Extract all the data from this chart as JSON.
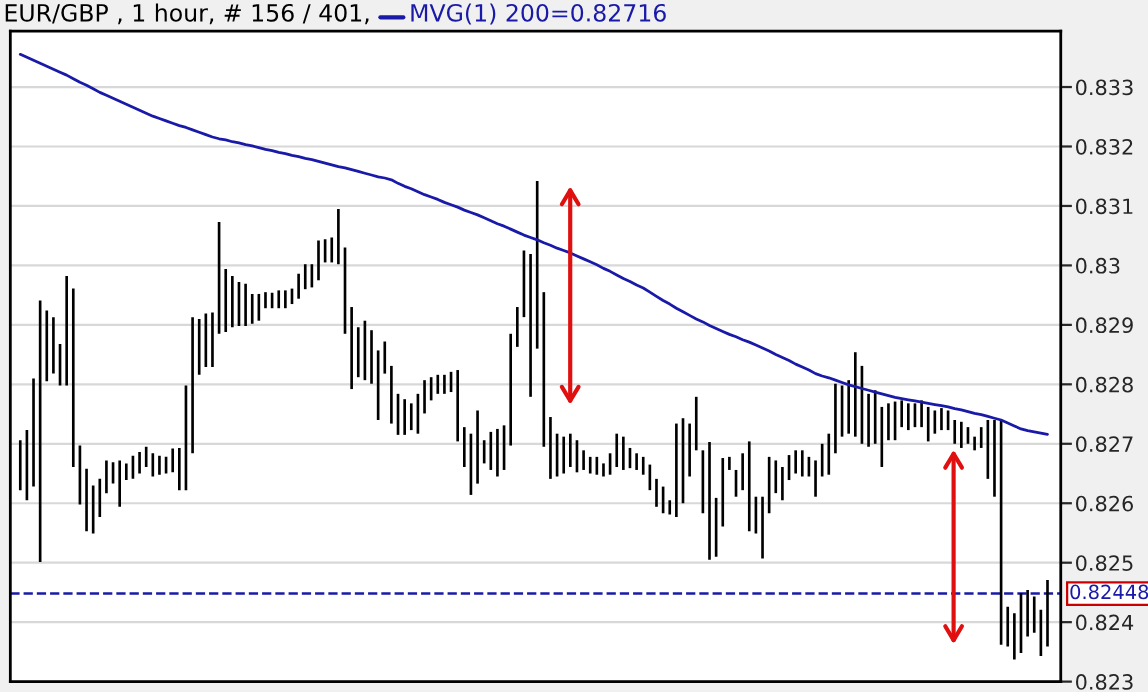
{
  "chart_data": {
    "type": "bar",
    "title": "EUR/GBP , 1 hour, # 156 / 401, ",
    "categories": [
      null,
      null,
      null,
      null,
      null,
      null,
      null,
      null,
      null,
      null,
      null,
      null,
      null,
      null,
      null,
      null,
      null,
      null,
      null,
      null,
      null,
      null,
      null,
      null,
      null,
      null,
      null,
      null,
      null,
      null,
      null,
      null,
      null,
      null,
      null,
      null,
      null,
      null,
      null,
      null,
      null,
      null,
      null,
      null,
      null,
      null,
      null,
      null,
      null,
      null,
      null,
      null,
      null,
      null,
      null,
      null,
      null,
      null,
      null,
      null,
      null,
      null,
      null,
      null,
      null,
      null,
      null,
      null,
      null,
      null,
      null,
      null,
      null,
      null,
      null,
      null,
      null,
      null,
      null,
      null,
      null,
      null,
      null,
      null,
      null,
      null,
      null,
      null,
      null,
      null,
      null,
      null,
      null,
      null,
      null,
      null,
      null,
      null,
      null,
      null,
      null,
      null,
      null,
      null,
      null,
      null,
      null,
      null,
      null,
      null,
      null,
      null,
      null,
      null,
      null,
      null,
      null,
      null,
      null,
      null,
      null,
      null,
      null,
      null,
      null,
      null,
      null,
      null,
      null,
      null,
      null,
      null,
      null,
      null,
      null,
      null,
      null,
      null,
      null,
      null,
      null,
      null,
      null,
      null,
      null,
      null,
      null,
      null,
      null,
      null,
      null,
      null,
      null,
      null,
      null,
      null
    ],
    "series": [
      {
        "color": "#000000",
        "base": [
          0.82622,
          0.82605,
          0.82628,
          0.82501,
          0.82805,
          0.82818,
          0.82798,
          0.82798,
          0.82661,
          0.82598,
          0.82553,
          0.82549,
          0.82577,
          0.82617,
          0.82633,
          0.82594,
          0.82639,
          0.82641,
          0.8265,
          0.82661,
          0.82645,
          0.82648,
          0.8265,
          0.82652,
          0.82622,
          0.82622,
          0.82684,
          0.82816,
          0.82829,
          0.82829,
          0.82885,
          0.82888,
          0.82896,
          0.82898,
          0.82898,
          0.82902,
          0.82907,
          0.82928,
          0.82928,
          0.82928,
          0.82928,
          0.82935,
          0.82944,
          0.8296,
          0.82963,
          0.82975,
          0.83005,
          0.83005,
          0.83002,
          0.82885,
          0.82792,
          0.82812,
          0.82807,
          0.82801,
          0.8274,
          0.82818,
          0.82734,
          0.82715,
          0.82715,
          0.82723,
          0.82717,
          0.82751,
          0.82773,
          0.82784,
          0.82784,
          0.82787,
          0.82704,
          0.82661,
          0.82614,
          0.82633,
          0.82667,
          0.82656,
          0.82645,
          0.82656,
          0.82697,
          0.82863,
          0.82913,
          0.82779,
          0.8286,
          0.82695,
          0.82641,
          0.82645,
          0.8265,
          0.82661,
          0.82652,
          0.82656,
          0.8265,
          0.82648,
          0.82645,
          0.82648,
          0.82661,
          0.82656,
          0.82659,
          0.82656,
          0.82648,
          0.82622,
          0.82594,
          0.82583,
          0.82581,
          0.82577,
          0.826,
          0.82645,
          0.82689,
          0.82583,
          0.82505,
          0.8251,
          0.82561,
          0.82656,
          0.82611,
          0.82622,
          0.82553,
          0.82549,
          0.82507,
          0.82583,
          0.82617,
          0.82605,
          0.82639,
          0.8265,
          0.82645,
          0.82645,
          0.82611,
          0.82645,
          0.82648,
          0.82684,
          0.82712,
          0.82717,
          0.82712,
          0.827,
          0.82695,
          0.827,
          0.82661,
          0.82706,
          0.82706,
          0.82728,
          0.82723,
          0.82728,
          0.82728,
          0.82704,
          0.82717,
          0.82723,
          0.82723,
          0.827,
          0.82693,
          0.827,
          0.82689,
          0.82693,
          0.82641,
          0.82611,
          0.82362,
          0.82359,
          0.82337,
          0.82348,
          0.82376,
          0.82382,
          0.82343,
          0.82359
        ],
        "values": [
          0.00084,
          0.00118,
          0.00182,
          0.0044,
          0.00119,
          0.00095,
          0.0007,
          0.00184,
          0.003,
          0.00099,
          0.00105,
          0.00081,
          0.00064,
          0.00055,
          0.00036,
          0.00078,
          0.00028,
          0.00039,
          0.00036,
          0.00034,
          0.00039,
          0.00032,
          0.00028,
          0.0004,
          0.00071,
          0.00176,
          0.00229,
          0.00094,
          0.0009,
          0.00092,
          0.00188,
          0.00106,
          0.00086,
          0.00074,
          0.00071,
          0.0005,
          0.00045,
          0.00027,
          0.00026,
          0.0003,
          0.0003,
          0.00026,
          0.00042,
          0.00042,
          0.00039,
          0.00067,
          0.00039,
          0.00042,
          0.00093,
          0.00145,
          0.00138,
          0.00084,
          0.001,
          0.0009,
          0.00117,
          0.00054,
          0.00097,
          0.00069,
          0.0006,
          0.00045,
          0.00067,
          0.00056,
          0.00039,
          0.00032,
          0.00032,
          0.00034,
          0.0012,
          0.00067,
          0.00103,
          0.00123,
          0.00039,
          0.00064,
          0.0008,
          0.00075,
          0.00188,
          0.00067,
          0.00112,
          0.0024,
          0.00282,
          0.0026,
          0.00104,
          0.00072,
          0.00062,
          0.00056,
          0.00054,
          0.00033,
          0.00028,
          0.0003,
          0.00022,
          0.00036,
          0.00056,
          0.00056,
          0.00034,
          0.00028,
          0.0003,
          0.00043,
          0.00047,
          0.00045,
          0.00024,
          0.00157,
          0.00143,
          0.00089,
          0.0009,
          0.00106,
          0.00198,
          0.00099,
          0.00115,
          0.00022,
          0.00045,
          0.00062,
          0.00151,
          0.00062,
          0.00104,
          0.00095,
          0.00055,
          0.00056,
          0.00042,
          0.00039,
          0.00044,
          0.00033,
          0.00061,
          0.00055,
          0.00069,
          0.00117,
          0.00086,
          0.0009,
          0.00142,
          0.00131,
          0.00089,
          0.0009,
          0.00101,
          0.00062,
          0.00065,
          0.00045,
          0.00045,
          0.0004,
          0.00045,
          0.00058,
          0.00039,
          0.00037,
          0.00033,
          0.0004,
          0.00044,
          0.00028,
          0.00023,
          0.00035,
          0.00099,
          0.00129,
          0.00378,
          0.00067,
          0.00078,
          0.00101,
          0.00078,
          0.00061,
          0.00078,
          0.00112
        ]
      },
      {
        "type": "line",
        "name": "MVG(1) 200=0.82716",
        "color": "#1a1aa8",
        "values": [
          0.83355,
          0.8335,
          0.83345,
          0.8334,
          0.83335,
          0.8333,
          0.83325,
          0.8332,
          0.83314,
          0.83308,
          0.83303,
          0.83297,
          0.83291,
          0.83286,
          0.83281,
          0.83276,
          0.83271,
          0.83266,
          0.83261,
          0.83256,
          0.83251,
          0.83247,
          0.83243,
          0.83239,
          0.83235,
          0.83232,
          0.83228,
          0.83224,
          0.8322,
          0.83216,
          0.83213,
          0.83211,
          0.83208,
          0.83206,
          0.83203,
          0.83201,
          0.83198,
          0.83195,
          0.83193,
          0.8319,
          0.83188,
          0.83185,
          0.83183,
          0.8318,
          0.83178,
          0.83175,
          0.83172,
          0.83169,
          0.83166,
          0.83164,
          0.83161,
          0.83158,
          0.83155,
          0.83152,
          0.83149,
          0.83147,
          0.83144,
          0.83138,
          0.83133,
          0.83129,
          0.83124,
          0.83119,
          0.83115,
          0.83111,
          0.83106,
          0.83102,
          0.83098,
          0.83093,
          0.83089,
          0.83085,
          0.8308,
          0.83075,
          0.8307,
          0.83066,
          0.83061,
          0.83056,
          0.83051,
          0.83047,
          0.83043,
          0.83038,
          0.83034,
          0.83029,
          0.83025,
          0.83021,
          0.83016,
          0.83011,
          0.83006,
          0.83001,
          0.82995,
          0.8299,
          0.82984,
          0.82978,
          0.82973,
          0.82967,
          0.82962,
          0.82955,
          0.82948,
          0.82941,
          0.82935,
          0.82928,
          0.82922,
          0.82916,
          0.8291,
          0.82905,
          0.82899,
          0.82894,
          0.82889,
          0.82884,
          0.8288,
          0.82875,
          0.82871,
          0.82866,
          0.82861,
          0.82856,
          0.8285,
          0.82845,
          0.8284,
          0.82834,
          0.82829,
          0.82824,
          0.82818,
          0.82814,
          0.82811,
          0.82807,
          0.82803,
          0.82799,
          0.82796,
          0.82793,
          0.8279,
          0.82787,
          0.82784,
          0.82781,
          0.82778,
          0.82776,
          0.82774,
          0.82772,
          0.8277,
          0.82768,
          0.82766,
          0.82764,
          0.82762,
          0.82759,
          0.82757,
          0.82754,
          0.82751,
          0.82749,
          0.82746,
          0.82743,
          0.8274,
          0.82735,
          0.8273,
          0.82725,
          0.82722,
          0.8272,
          0.82718,
          0.82716
        ]
      }
    ],
    "ylim": [
      0.823,
      0.83394
    ],
    "yticks": [
      0.823,
      0.824,
      0.825,
      0.826,
      0.827,
      0.828,
      0.829,
      0.83,
      0.831,
      0.832,
      0.833
    ],
    "tick_labels": "y",
    "grid": "y",
    "ref_lines": [
      {
        "axis": "y",
        "value": 0.82448,
        "label": "0.82448",
        "color": "#1a1aa8",
        "line_style": "dashed"
      }
    ]
  }
}
